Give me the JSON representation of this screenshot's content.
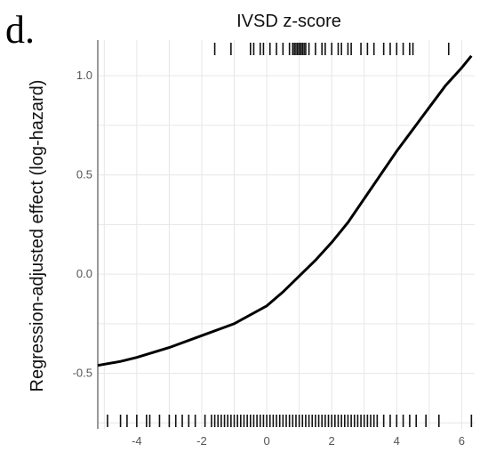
{
  "panel_label": "d.",
  "chart_data": {
    "type": "line",
    "title": "IVSD z-score",
    "xlabel": "",
    "ylabel": "Regression-adjusted effect (log-hazard)",
    "xlim": [
      -5.2,
      6.4
    ],
    "ylim": [
      -0.78,
      1.18
    ],
    "x_ticks": [
      -4,
      -2,
      0,
      2,
      4,
      6
    ],
    "y_ticks": [
      -0.5,
      0.0,
      0.5,
      1.0
    ],
    "x_tick_labels": [
      "-4",
      "-2",
      "0",
      "2",
      "4",
      "6"
    ],
    "y_tick_labels": [
      "-0.5",
      "0.0",
      "0.5",
      "1.0"
    ],
    "grid": true,
    "series": [
      {
        "x": [
          -5.2,
          -4.5,
          -4,
          -3,
          -2,
          -1,
          0,
          0.5,
          1,
          1.5,
          2,
          2.5,
          3,
          3.5,
          4,
          4.5,
          5,
          5.5,
          6,
          6.3
        ],
        "y": [
          -0.46,
          -0.44,
          -0.42,
          -0.37,
          -0.31,
          -0.25,
          -0.16,
          -0.09,
          -0.01,
          0.07,
          0.16,
          0.26,
          0.38,
          0.5,
          0.62,
          0.73,
          0.84,
          0.95,
          1.04,
          1.1
        ],
        "color": "#000000"
      }
    ],
    "rug_top": [
      -1.6,
      -1.1,
      -0.5,
      -0.4,
      -0.2,
      -0.1,
      0.1,
      0.3,
      0.5,
      0.7,
      0.8,
      0.85,
      0.9,
      0.95,
      1.0,
      1.05,
      1.1,
      1.15,
      1.2,
      1.3,
      1.5,
      1.7,
      1.8,
      2.0,
      2.2,
      2.3,
      2.5,
      2.6,
      2.9,
      3.1,
      3.3,
      3.6,
      3.8,
      4.0,
      4.2,
      4.4,
      4.5,
      5.6
    ],
    "rug_bottom": [
      -4.9,
      -4.5,
      -4.3,
      -4.0,
      -3.7,
      -3.6,
      -3.3,
      -3.0,
      -2.8,
      -2.6,
      -2.4,
      -2.2,
      -1.9,
      -1.7,
      -1.6,
      -1.5,
      -1.4,
      -1.3,
      -1.2,
      -1.1,
      -1.0,
      -0.9,
      -0.8,
      -0.7,
      -0.6,
      -0.5,
      -0.4,
      -0.3,
      -0.2,
      -0.1,
      0.0,
      0.1,
      0.2,
      0.3,
      0.4,
      0.5,
      0.6,
      0.7,
      0.8,
      0.9,
      1.0,
      1.1,
      1.2,
      1.3,
      1.4,
      1.5,
      1.6,
      1.7,
      1.8,
      1.9,
      2.0,
      2.1,
      2.2,
      2.3,
      2.4,
      2.5,
      2.6,
      2.7,
      2.8,
      2.9,
      3.0,
      3.1,
      3.2,
      3.3,
      3.4,
      3.6,
      3.8,
      4.0,
      4.2,
      4.4,
      4.6,
      4.9,
      5.3,
      6.3
    ]
  }
}
